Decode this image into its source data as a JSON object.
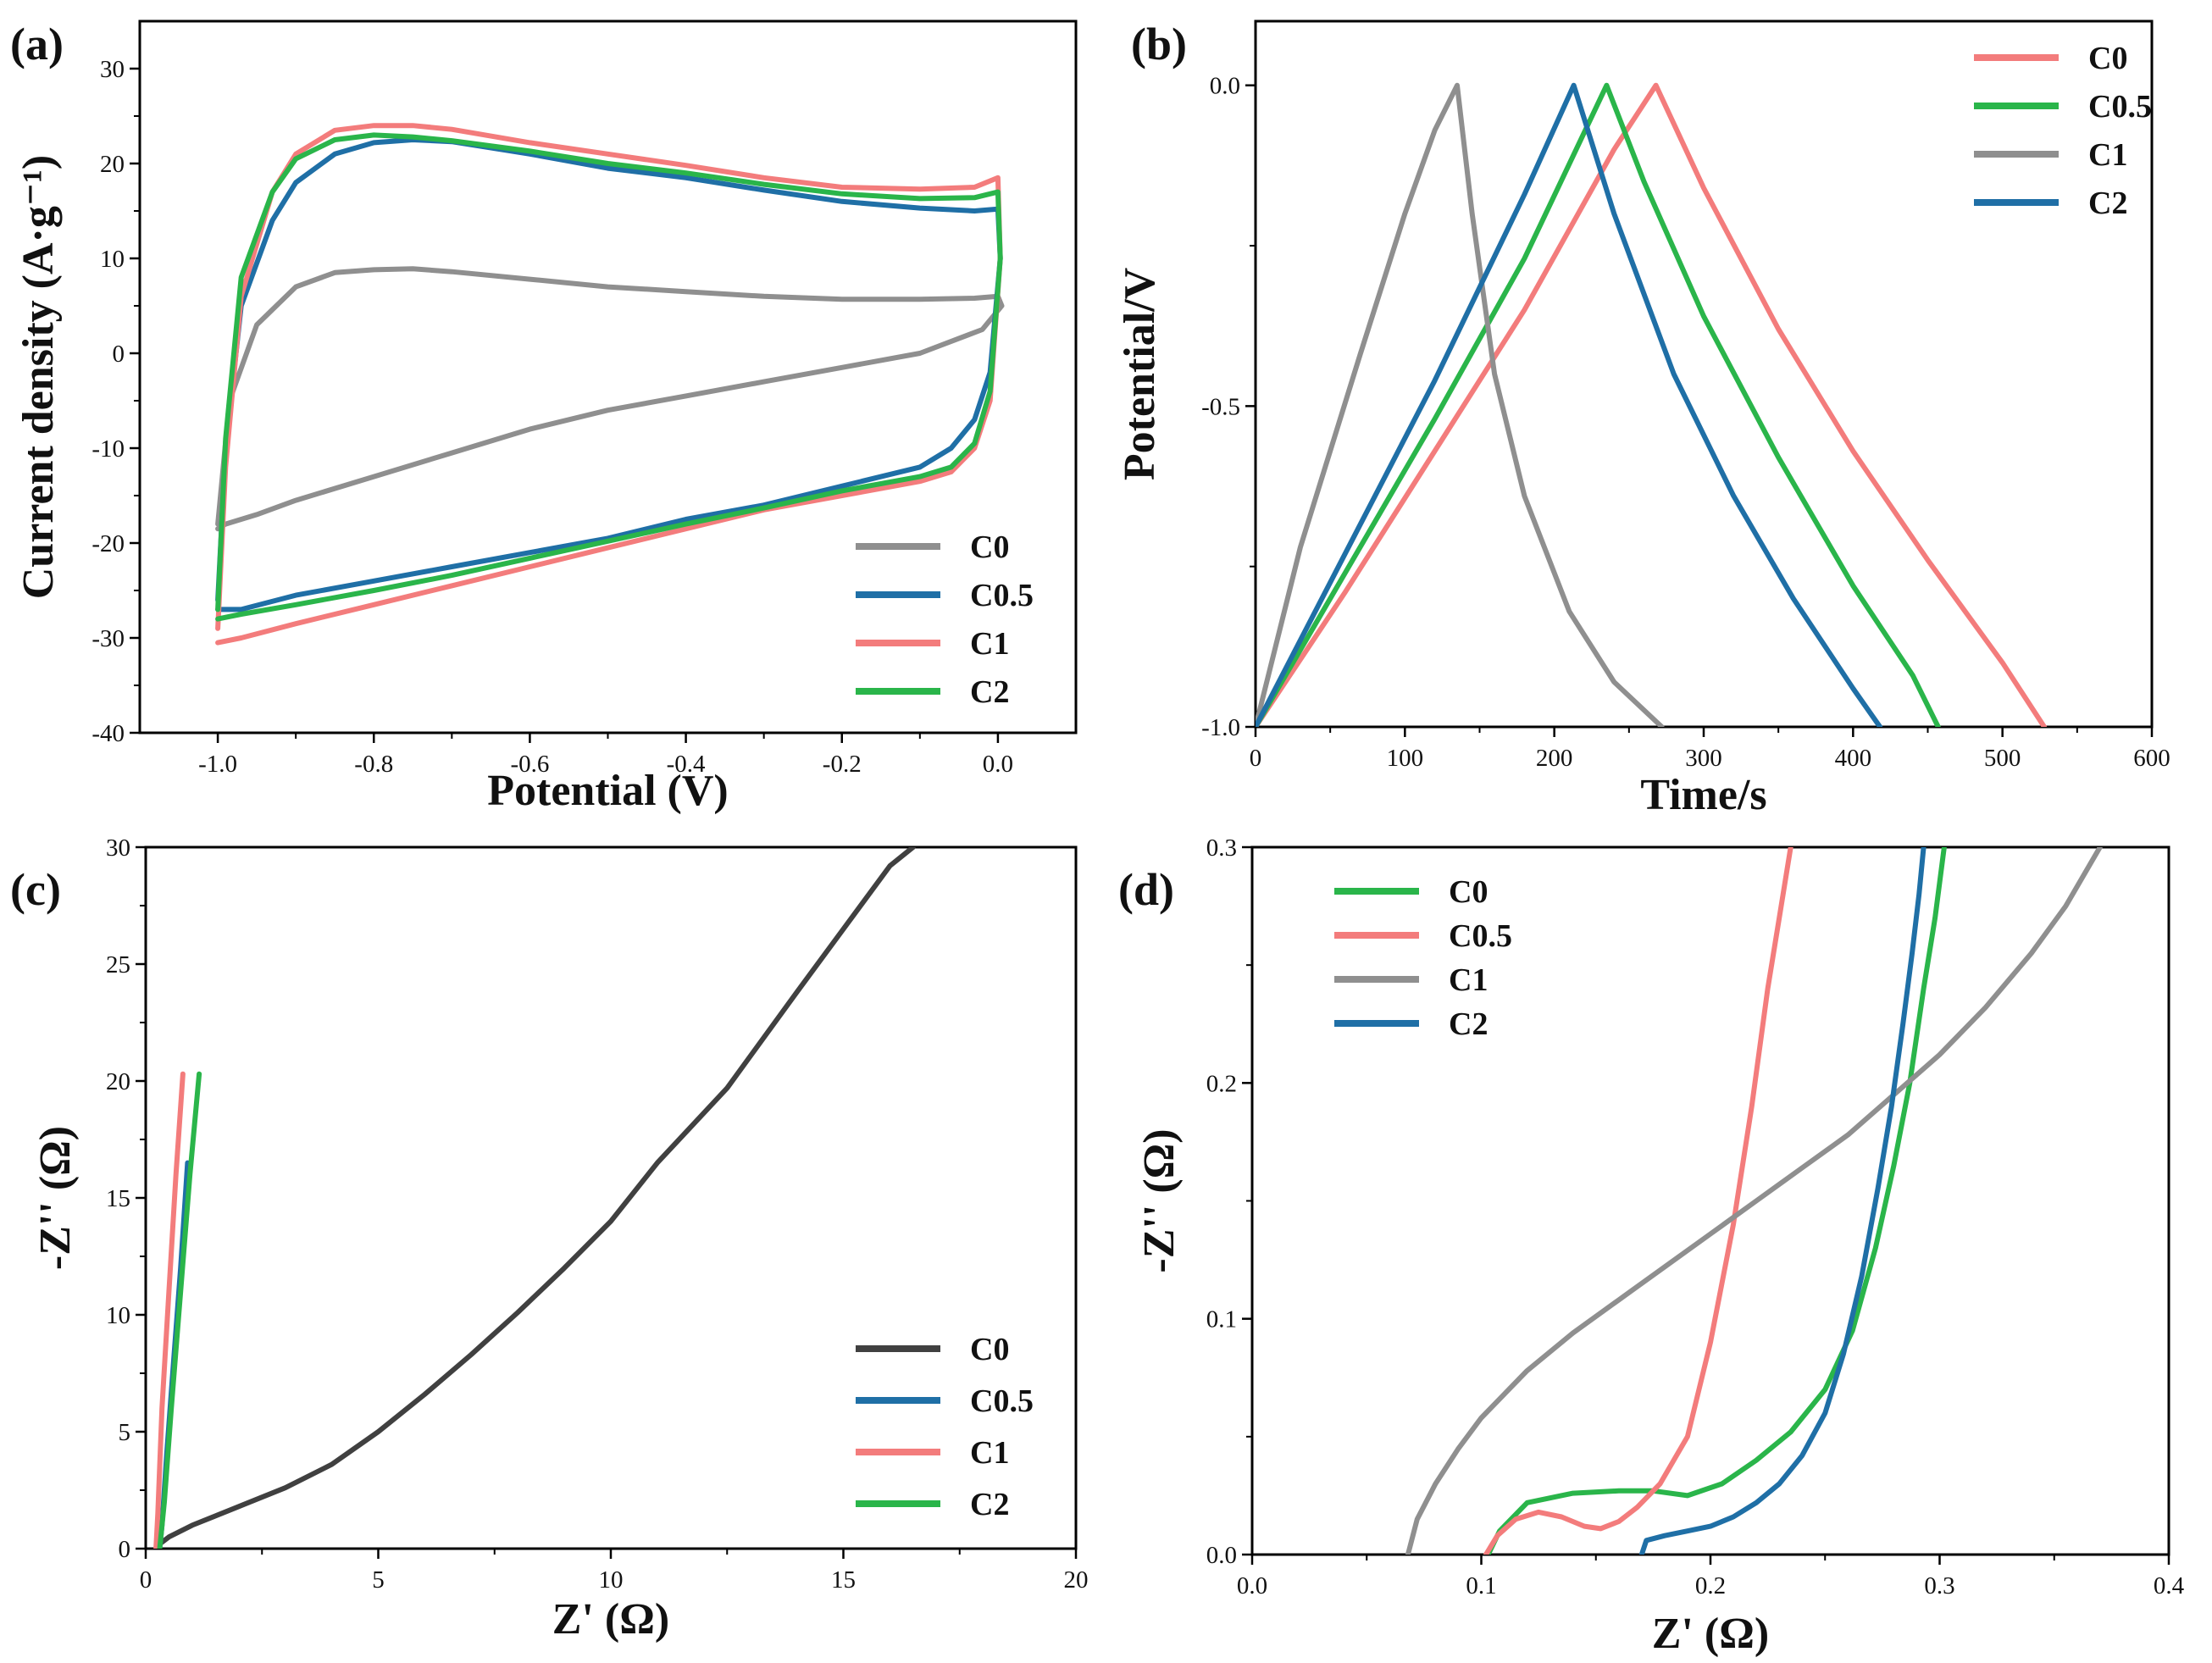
{
  "chart_data": [
    {
      "panel": "(a)",
      "type": "line",
      "xlabel": "Potential (V)",
      "ylabel": "Current density (A·g⁻¹)",
      "xlim": [
        -1.1,
        0.1
      ],
      "ylim": [
        -40,
        35
      ],
      "xticks": [
        -1.0,
        -0.8,
        -0.6,
        -0.4,
        -0.2,
        0.0
      ],
      "xtick_labels": [
        "-1.0",
        "-0.8",
        "-0.6",
        "-0.4",
        "-0.2",
        "0.0"
      ],
      "yticks": [
        -40,
        -30,
        -20,
        -10,
        0,
        10,
        20,
        30
      ],
      "ytick_labels": [
        "-40",
        "-30",
        "-20",
        "-10",
        "0",
        "10",
        "20",
        "30"
      ],
      "legend_position": "bottom-right",
      "series": [
        {
          "name": "C0",
          "color": "#8f8f8f",
          "x": [
            -1.0,
            -0.985,
            -0.95,
            -0.9,
            -0.85,
            -0.8,
            -0.75,
            -0.7,
            -0.6,
            -0.5,
            -0.4,
            -0.3,
            -0.2,
            -0.1,
            -0.03,
            0.0,
            0.005,
            -0.02,
            -0.1,
            -0.2,
            -0.3,
            -0.4,
            -0.5,
            -0.6,
            -0.7,
            -0.8,
            -0.9,
            -0.95,
            -0.99,
            -1.0
          ],
          "y": [
            -18,
            -5,
            3,
            7,
            8.5,
            8.8,
            8.9,
            8.6,
            7.8,
            7,
            6.5,
            6,
            5.7,
            5.7,
            5.8,
            6,
            5,
            2.5,
            0,
            -1.5,
            -3,
            -4.5,
            -6,
            -8,
            -10.5,
            -13,
            -15.5,
            -17,
            -18,
            -18.5
          ]
        },
        {
          "name": "C0.5",
          "color": "#1f6fa6",
          "x": [
            -1.0,
            -0.99,
            -0.97,
            -0.93,
            -0.9,
            -0.85,
            -0.8,
            -0.75,
            -0.7,
            -0.6,
            -0.5,
            -0.4,
            -0.3,
            -0.2,
            -0.1,
            -0.03,
            0.0,
            0.003,
            -0.01,
            -0.03,
            -0.06,
            -0.1,
            -0.2,
            -0.3,
            -0.4,
            -0.5,
            -0.6,
            -0.7,
            -0.8,
            -0.9,
            -0.97,
            -1.0
          ],
          "y": [
            -26,
            -10,
            5,
            14,
            18,
            21,
            22.2,
            22.5,
            22.3,
            21,
            19.5,
            18.5,
            17.2,
            16,
            15.3,
            15,
            15.2,
            10,
            -2,
            -7,
            -10,
            -12,
            -14,
            -16,
            -17.5,
            -19.5,
            -21,
            -22.5,
            -24,
            -25.5,
            -27,
            -27
          ]
        },
        {
          "name": "C1",
          "color": "#f37c7c",
          "x": [
            -1.0,
            -0.99,
            -0.97,
            -0.93,
            -0.9,
            -0.85,
            -0.8,
            -0.75,
            -0.7,
            -0.6,
            -0.5,
            -0.4,
            -0.3,
            -0.2,
            -0.1,
            -0.03,
            0.0,
            0.003,
            -0.01,
            -0.03,
            -0.06,
            -0.1,
            -0.2,
            -0.3,
            -0.4,
            -0.5,
            -0.6,
            -0.7,
            -0.8,
            -0.9,
            -0.97,
            -1.0
          ],
          "y": [
            -29,
            -12,
            6,
            17,
            21,
            23.5,
            24,
            24,
            23.6,
            22.2,
            21,
            19.8,
            18.5,
            17.5,
            17.3,
            17.5,
            18.5,
            10,
            -5,
            -10,
            -12.5,
            -13.5,
            -15,
            -16.5,
            -18.5,
            -20.5,
            -22.5,
            -24.5,
            -26.5,
            -28.5,
            -30,
            -30.5
          ]
        },
        {
          "name": "C2",
          "color": "#2ab54a",
          "x": [
            -1.0,
            -0.99,
            -0.97,
            -0.93,
            -0.9,
            -0.85,
            -0.8,
            -0.75,
            -0.7,
            -0.6,
            -0.5,
            -0.4,
            -0.3,
            -0.2,
            -0.1,
            -0.03,
            0.0,
            0.003,
            -0.01,
            -0.03,
            -0.06,
            -0.1,
            -0.2,
            -0.3,
            -0.4,
            -0.5,
            -0.6,
            -0.7,
            -0.8,
            -0.9,
            -0.97,
            -1.0
          ],
          "y": [
            -27,
            -9,
            8,
            17,
            20.5,
            22.5,
            23,
            22.8,
            22.4,
            21.3,
            20,
            19,
            17.8,
            16.8,
            16.3,
            16.4,
            17,
            10,
            -4,
            -9.5,
            -12,
            -13,
            -14.5,
            -16.3,
            -18,
            -19.8,
            -21.6,
            -23.4,
            -25,
            -26.5,
            -27.5,
            -28
          ]
        }
      ]
    },
    {
      "panel": "(b)",
      "type": "line",
      "xlabel": "Time/s",
      "ylabel": "Potential/V",
      "xlim": [
        0,
        600
      ],
      "ylim": [
        -1.0,
        0.1
      ],
      "xticks": [
        0,
        100,
        200,
        300,
        400,
        500,
        600
      ],
      "xtick_labels": [
        "0",
        "100",
        "200",
        "300",
        "400",
        "500",
        "600"
      ],
      "yticks": [
        -1.0,
        -0.5,
        0.0
      ],
      "ytick_labels": [
        "-1.0",
        "-0.5",
        "0.0"
      ],
      "legend_position": "top-right",
      "series": [
        {
          "name": "C0",
          "color": "#f37c7c",
          "x": [
            0,
            60,
            120,
            180,
            240,
            268,
            300,
            350,
            400,
            450,
            500,
            528
          ],
          "y": [
            -1.0,
            -0.79,
            -0.57,
            -0.35,
            -0.1,
            0.0,
            -0.16,
            -0.38,
            -0.57,
            -0.74,
            -0.9,
            -1.0
          ]
        },
        {
          "name": "C0.5",
          "color": "#2ab54a",
          "x": [
            0,
            60,
            120,
            180,
            235,
            260,
            300,
            350,
            400,
            440,
            457
          ],
          "y": [
            -1.0,
            -0.76,
            -0.52,
            -0.27,
            0.0,
            -0.15,
            -0.36,
            -0.58,
            -0.78,
            -0.92,
            -1.0
          ]
        },
        {
          "name": "C1",
          "color": "#8f8f8f",
          "x": [
            0,
            30,
            70,
            100,
            120,
            135,
            145,
            160,
            180,
            210,
            240,
            272
          ],
          "y": [
            -1.0,
            -0.72,
            -0.42,
            -0.2,
            -0.07,
            0.0,
            -0.2,
            -0.45,
            -0.64,
            -0.82,
            -0.93,
            -1.0
          ]
        },
        {
          "name": "C2",
          "color": "#1f6fa6",
          "x": [
            0,
            60,
            120,
            180,
            213,
            240,
            280,
            320,
            360,
            400,
            418
          ],
          "y": [
            -1.0,
            -0.73,
            -0.46,
            -0.17,
            0.0,
            -0.2,
            -0.45,
            -0.64,
            -0.8,
            -0.94,
            -1.0
          ]
        }
      ]
    },
    {
      "panel": "(c)",
      "type": "line",
      "xlabel": "Z' (Ω)",
      "ylabel": "-Z'' (Ω)",
      "xlim": [
        0,
        20
      ],
      "ylim": [
        0,
        30
      ],
      "xticks": [
        0,
        5,
        10,
        15,
        20
      ],
      "xtick_labels": [
        "0",
        "5",
        "10",
        "15",
        "20"
      ],
      "yticks": [
        0,
        5,
        10,
        15,
        20,
        25,
        30
      ],
      "ytick_labels": [
        "0",
        "5",
        "10",
        "15",
        "20",
        "25",
        "30"
      ],
      "legend_position": "bottom-right",
      "series": [
        {
          "name": "C0",
          "color": "#404040",
          "x": [
            0.3,
            0.5,
            1,
            2,
            3,
            4,
            5,
            6,
            7,
            8,
            9,
            10,
            11,
            12.5,
            14,
            15,
            16,
            16.5
          ],
          "y": [
            0.2,
            0.5,
            1,
            1.8,
            2.6,
            3.6,
            5,
            6.6,
            8.3,
            10.1,
            12,
            14,
            16.5,
            19.7,
            23.8,
            26.5,
            29.2,
            30
          ]
        },
        {
          "name": "C0.5",
          "color": "#1f6fa6",
          "x": [
            0.3,
            0.35,
            0.45,
            0.6,
            0.75,
            0.9
          ],
          "y": [
            0,
            1,
            4,
            8,
            12,
            16.5
          ]
        },
        {
          "name": "C1",
          "color": "#f37c7c",
          "x": [
            0.22,
            0.26,
            0.35,
            0.5,
            0.65,
            0.8
          ],
          "y": [
            0,
            1.5,
            6,
            11,
            16,
            20.3
          ]
        },
        {
          "name": "C2",
          "color": "#2ab54a",
          "x": [
            0.3,
            0.4,
            0.55,
            0.75,
            0.95,
            1.15
          ],
          "y": [
            0,
            2,
            6,
            11,
            16,
            20.3
          ]
        }
      ]
    },
    {
      "panel": "(d)",
      "type": "line",
      "xlabel": "Z' (Ω)",
      "ylabel": "-Z'' (Ω)",
      "xlim": [
        0.0,
        0.4
      ],
      "ylim": [
        0.0,
        0.3
      ],
      "xticks": [
        0.0,
        0.1,
        0.2,
        0.3,
        0.4
      ],
      "xtick_labels": [
        "0.0",
        "0.1",
        "0.2",
        "0.3",
        "0.4"
      ],
      "yticks": [
        0.0,
        0.1,
        0.2,
        0.3
      ],
      "ytick_labels": [
        "0.0",
        "0.1",
        "0.2",
        "0.3"
      ],
      "legend_position": "top-left",
      "series": [
        {
          "name": "C0",
          "color": "#2ab54a",
          "x": [
            0.103,
            0.108,
            0.12,
            0.14,
            0.16,
            0.175,
            0.19,
            0.205,
            0.22,
            0.235,
            0.25,
            0.262,
            0.272,
            0.28,
            0.287,
            0.293,
            0.298,
            0.302
          ],
          "y": [
            0.0,
            0.01,
            0.022,
            0.026,
            0.027,
            0.027,
            0.025,
            0.03,
            0.04,
            0.052,
            0.07,
            0.095,
            0.13,
            0.165,
            0.2,
            0.24,
            0.27,
            0.3
          ]
        },
        {
          "name": "C0.5",
          "color": "#f37c7c",
          "x": [
            0.102,
            0.107,
            0.115,
            0.125,
            0.135,
            0.145,
            0.152,
            0.16,
            0.168,
            0.178,
            0.19,
            0.2,
            0.21,
            0.218,
            0.225,
            0.23,
            0.235
          ],
          "y": [
            0.0,
            0.008,
            0.015,
            0.018,
            0.016,
            0.012,
            0.011,
            0.014,
            0.02,
            0.03,
            0.05,
            0.09,
            0.14,
            0.19,
            0.24,
            0.27,
            0.3
          ]
        },
        {
          "name": "C1",
          "color": "#8f8f8f",
          "x": [
            0.068,
            0.072,
            0.08,
            0.09,
            0.1,
            0.12,
            0.14,
            0.16,
            0.18,
            0.2,
            0.22,
            0.24,
            0.26,
            0.28,
            0.3,
            0.32,
            0.34,
            0.355,
            0.37
          ],
          "y": [
            0.0,
            0.015,
            0.03,
            0.045,
            0.058,
            0.078,
            0.094,
            0.108,
            0.122,
            0.136,
            0.15,
            0.164,
            0.178,
            0.195,
            0.212,
            0.232,
            0.255,
            0.275,
            0.3
          ]
        },
        {
          "name": "C2",
          "color": "#1f6fa6",
          "x": [
            0.17,
            0.172,
            0.18,
            0.19,
            0.2,
            0.21,
            0.22,
            0.23,
            0.24,
            0.25,
            0.258,
            0.266,
            0.273,
            0.279,
            0.284,
            0.288,
            0.291,
            0.293
          ],
          "y": [
            0.0,
            0.006,
            0.008,
            0.01,
            0.012,
            0.016,
            0.022,
            0.03,
            0.042,
            0.06,
            0.085,
            0.118,
            0.155,
            0.19,
            0.225,
            0.255,
            0.28,
            0.3
          ]
        }
      ]
    }
  ]
}
